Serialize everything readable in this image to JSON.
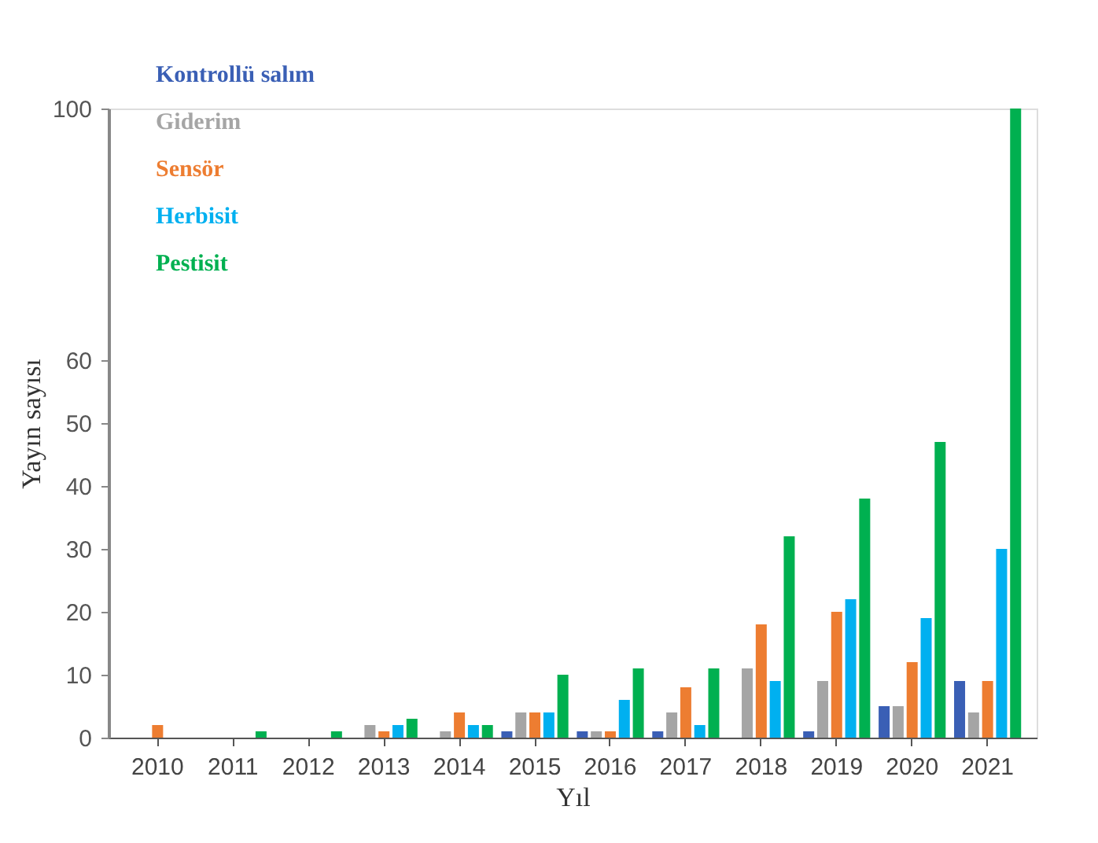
{
  "chart_data": {
    "type": "bar",
    "xlabel": "Yıl",
    "ylabel": "Yayın sayısı",
    "categories": [
      "2010",
      "2011",
      "2012",
      "2013",
      "2014",
      "2015",
      "2016",
      "2017",
      "2018",
      "2019",
      "2020",
      "2021"
    ],
    "series": [
      {
        "name": "Kontrollü salım",
        "color": "#3a5fb5",
        "values": [
          0,
          0,
          0,
          0,
          0,
          1,
          1,
          1,
          0,
          1,
          5,
          9
        ]
      },
      {
        "name": "Giderim",
        "color": "#a5a5a5",
        "values": [
          0,
          0,
          0,
          2,
          1,
          4,
          1,
          4,
          11,
          9,
          5,
          4
        ]
      },
      {
        "name": "Sensör",
        "color": "#ed7d31",
        "values": [
          2,
          0,
          0,
          1,
          4,
          4,
          1,
          8,
          18,
          20,
          12,
          9
        ]
      },
      {
        "name": "Herbisit",
        "color": "#00b0f0",
        "values": [
          0,
          0,
          0,
          2,
          2,
          4,
          6,
          2,
          9,
          22,
          19,
          30
        ]
      },
      {
        "name": "Pestisit",
        "color": "#00b050",
        "values": [
          0,
          1,
          1,
          3,
          2,
          10,
          11,
          11,
          32,
          38,
          47,
          100
        ]
      }
    ],
    "ylim": [
      0,
      100
    ],
    "yticks": [
      0,
      10,
      20,
      30,
      40,
      50,
      60,
      100
    ],
    "grid": false,
    "legend": "top left"
  }
}
